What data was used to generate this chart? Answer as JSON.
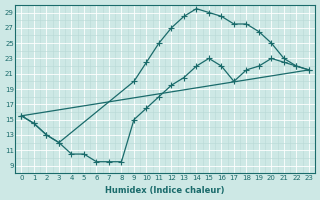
{
  "xlabel": "Humidex (Indice chaleur)",
  "bg_color": "#cde8e5",
  "line_color": "#1a6b6b",
  "grid_major_color": "#ffffff",
  "grid_minor_color": "#b8d8d5",
  "xlim": [
    -0.5,
    23.5
  ],
  "ylim": [
    8.0,
    30.0
  ],
  "xticks": [
    0,
    1,
    2,
    3,
    4,
    5,
    6,
    7,
    8,
    9,
    10,
    11,
    12,
    13,
    14,
    15,
    16,
    17,
    18,
    19,
    20,
    21,
    22,
    23
  ],
  "yticks": [
    9,
    11,
    13,
    15,
    17,
    19,
    21,
    23,
    25,
    27,
    29
  ],
  "curve1_x": [
    0,
    1,
    2,
    3,
    9,
    10,
    11,
    12,
    13,
    14,
    15,
    16,
    17,
    18,
    19,
    20,
    21,
    22,
    23
  ],
  "curve1_y": [
    15.5,
    14.5,
    13.0,
    12.0,
    20.0,
    22.5,
    25.0,
    27.0,
    28.5,
    29.5,
    29.0,
    28.5,
    27.5,
    27.5,
    26.5,
    25.0,
    23.0,
    22.0,
    21.5
  ],
  "curve2_x": [
    0,
    1,
    2,
    3,
    4,
    5,
    6,
    7,
    8,
    9,
    10,
    11,
    12,
    13,
    14,
    15,
    16,
    17,
    18,
    19,
    20,
    21,
    22,
    23
  ],
  "curve2_y": [
    15.5,
    14.5,
    13.0,
    12.0,
    10.5,
    10.5,
    9.5,
    9.5,
    9.5,
    15.0,
    16.5,
    18.0,
    19.5,
    20.5,
    22.0,
    23.0,
    22.0,
    20.0,
    21.5,
    22.0,
    23.0,
    22.5,
    22.0,
    21.5
  ],
  "curve3_x": [
    0,
    23
  ],
  "curve3_y": [
    15.5,
    21.5
  ],
  "marker": "+",
  "markersize": 4.5,
  "linewidth": 0.9
}
